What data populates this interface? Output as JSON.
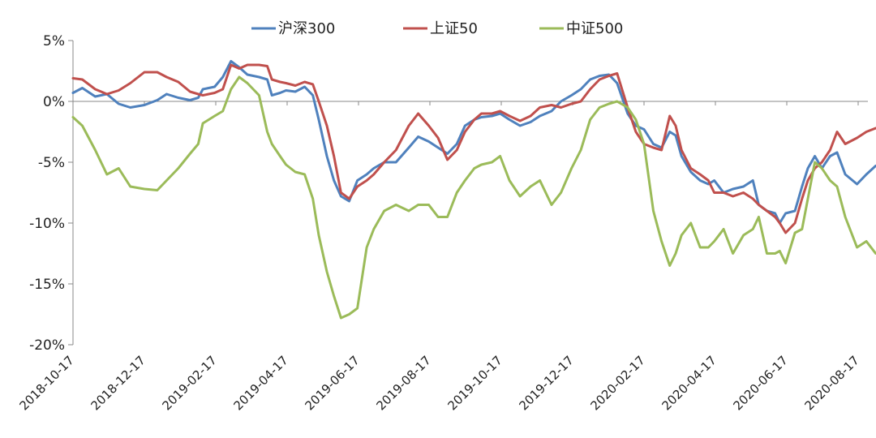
{
  "chart_data": {
    "type": "line",
    "title": "",
    "xlabel": "",
    "ylabel": "",
    "ylim": [
      -20,
      5
    ],
    "y_unit": "%",
    "grid": false,
    "legend_position": "top",
    "y_ticks": [
      "5%",
      "0%",
      "-5%",
      "-10%",
      "-15%",
      "-20%"
    ],
    "x_ticks": [
      "2018-10-17",
      "2018-12-17",
      "2019-02-17",
      "2019-04-17",
      "2019-06-17",
      "2019-08-17",
      "2019-10-17",
      "2019-12-17",
      "2020-02-17",
      "2020-04-17",
      "2020-06-17",
      "2020-08-17"
    ],
    "series": [
      {
        "name": "沪深300",
        "color": "#4f81bd",
        "points": [
          [
            "2018-10-17",
            0.7
          ],
          [
            "2018-10-25",
            1.1
          ],
          [
            "2018-11-05",
            0.4
          ],
          [
            "2018-11-15",
            0.6
          ],
          [
            "2018-11-25",
            -0.2
          ],
          [
            "2018-12-05",
            -0.5
          ],
          [
            "2018-12-17",
            -0.3
          ],
          [
            "2018-12-28",
            0.1
          ],
          [
            "2019-01-05",
            0.6
          ],
          [
            "2019-01-15",
            0.3
          ],
          [
            "2019-01-25",
            0.1
          ],
          [
            "2019-02-01",
            0.3
          ],
          [
            "2019-02-05",
            1.0
          ],
          [
            "2019-02-15",
            1.2
          ],
          [
            "2019-02-22",
            2.0
          ],
          [
            "2019-03-01",
            3.3
          ],
          [
            "2019-03-08",
            2.8
          ],
          [
            "2019-03-15",
            2.2
          ],
          [
            "2019-03-25",
            2.0
          ],
          [
            "2019-04-01",
            1.8
          ],
          [
            "2019-04-05",
            0.5
          ],
          [
            "2019-04-12",
            0.7
          ],
          [
            "2019-04-17",
            0.9
          ],
          [
            "2019-04-25",
            0.8
          ],
          [
            "2019-05-03",
            1.2
          ],
          [
            "2019-05-10",
            0.5
          ],
          [
            "2019-05-15",
            -1.5
          ],
          [
            "2019-05-22",
            -4.5
          ],
          [
            "2019-05-28",
            -6.5
          ],
          [
            "2019-06-03",
            -7.8
          ],
          [
            "2019-06-10",
            -8.2
          ],
          [
            "2019-06-17",
            -6.5
          ],
          [
            "2019-06-25",
            -6.0
          ],
          [
            "2019-07-01",
            -5.5
          ],
          [
            "2019-07-10",
            -5.0
          ],
          [
            "2019-07-20",
            -5.0
          ],
          [
            "2019-07-31",
            -3.8
          ],
          [
            "2019-08-08",
            -2.9
          ],
          [
            "2019-08-17",
            -3.3
          ],
          [
            "2019-08-25",
            -3.8
          ],
          [
            "2019-09-02",
            -4.3
          ],
          [
            "2019-09-10",
            -3.5
          ],
          [
            "2019-09-17",
            -2.0
          ],
          [
            "2019-09-25",
            -1.5
          ],
          [
            "2019-10-01",
            -1.3
          ],
          [
            "2019-10-10",
            -1.2
          ],
          [
            "2019-10-17",
            -1.0
          ],
          [
            "2019-10-25",
            -1.5
          ],
          [
            "2019-11-03",
            -2.0
          ],
          [
            "2019-11-12",
            -1.7
          ],
          [
            "2019-11-20",
            -1.2
          ],
          [
            "2019-11-30",
            -0.8
          ],
          [
            "2019-12-08",
            0.0
          ],
          [
            "2019-12-17",
            0.5
          ],
          [
            "2019-12-25",
            1.0
          ],
          [
            "2020-01-02",
            1.8
          ],
          [
            "2020-01-10",
            2.1
          ],
          [
            "2020-01-18",
            2.2
          ],
          [
            "2020-01-25",
            1.5
          ],
          [
            "2020-02-03",
            -1.0
          ],
          [
            "2020-02-10",
            -2.0
          ],
          [
            "2020-02-17",
            -2.3
          ],
          [
            "2020-02-25",
            -3.5
          ],
          [
            "2020-03-03",
            -3.8
          ],
          [
            "2020-03-10",
            -2.5
          ],
          [
            "2020-03-15",
            -2.8
          ],
          [
            "2020-03-20",
            -4.5
          ],
          [
            "2020-03-28",
            -5.8
          ],
          [
            "2020-04-05",
            -6.5
          ],
          [
            "2020-04-12",
            -6.8
          ],
          [
            "2020-04-17",
            -6.5
          ],
          [
            "2020-04-25",
            -7.5
          ],
          [
            "2020-05-03",
            -7.2
          ],
          [
            "2020-05-12",
            -7.0
          ],
          [
            "2020-05-20",
            -6.5
          ],
          [
            "2020-05-25",
            -8.5
          ],
          [
            "2020-06-01",
            -9.0
          ],
          [
            "2020-06-08",
            -9.2
          ],
          [
            "2020-06-12",
            -10.0
          ],
          [
            "2020-06-17",
            -9.2
          ],
          [
            "2020-06-25",
            -9.0
          ],
          [
            "2020-07-01",
            -7.0
          ],
          [
            "2020-07-06",
            -5.5
          ],
          [
            "2020-07-12",
            -4.5
          ],
          [
            "2020-07-18",
            -5.5
          ],
          [
            "2020-07-25",
            -4.5
          ],
          [
            "2020-07-31",
            -4.2
          ],
          [
            "2020-08-07",
            -6.0
          ],
          [
            "2020-08-17",
            -6.8
          ],
          [
            "2020-08-25",
            -6.0
          ],
          [
            "2020-09-02",
            -5.3
          ],
          [
            "2020-09-10",
            -5.2
          ]
        ]
      },
      {
        "name": "上证50",
        "color": "#c0504d",
        "points": [
          [
            "2018-10-17",
            1.9
          ],
          [
            "2018-10-25",
            1.8
          ],
          [
            "2018-11-05",
            1.0
          ],
          [
            "2018-11-15",
            0.6
          ],
          [
            "2018-11-25",
            0.9
          ],
          [
            "2018-12-05",
            1.5
          ],
          [
            "2018-12-17",
            2.4
          ],
          [
            "2018-12-28",
            2.4
          ],
          [
            "2019-01-05",
            2.0
          ],
          [
            "2019-01-15",
            1.6
          ],
          [
            "2019-01-25",
            0.8
          ],
          [
            "2019-02-01",
            0.6
          ],
          [
            "2019-02-05",
            0.5
          ],
          [
            "2019-02-15",
            0.7
          ],
          [
            "2019-02-22",
            1.0
          ],
          [
            "2019-03-01",
            3.0
          ],
          [
            "2019-03-08",
            2.7
          ],
          [
            "2019-03-15",
            3.0
          ],
          [
            "2019-03-25",
            3.0
          ],
          [
            "2019-04-01",
            2.9
          ],
          [
            "2019-04-05",
            1.8
          ],
          [
            "2019-04-12",
            1.6
          ],
          [
            "2019-04-17",
            1.5
          ],
          [
            "2019-04-25",
            1.3
          ],
          [
            "2019-05-03",
            1.6
          ],
          [
            "2019-05-10",
            1.4
          ],
          [
            "2019-05-15",
            0.0
          ],
          [
            "2019-05-22",
            -2.0
          ],
          [
            "2019-05-28",
            -4.5
          ],
          [
            "2019-06-03",
            -7.5
          ],
          [
            "2019-06-10",
            -8.0
          ],
          [
            "2019-06-17",
            -7.0
          ],
          [
            "2019-06-25",
            -6.5
          ],
          [
            "2019-07-01",
            -6.0
          ],
          [
            "2019-07-10",
            -5.0
          ],
          [
            "2019-07-20",
            -4.0
          ],
          [
            "2019-07-31",
            -2.0
          ],
          [
            "2019-08-08",
            -1.0
          ],
          [
            "2019-08-17",
            -2.0
          ],
          [
            "2019-08-25",
            -3.0
          ],
          [
            "2019-09-02",
            -4.8
          ],
          [
            "2019-09-10",
            -4.0
          ],
          [
            "2019-09-17",
            -2.5
          ],
          [
            "2019-09-25",
            -1.5
          ],
          [
            "2019-10-01",
            -1.0
          ],
          [
            "2019-10-10",
            -1.0
          ],
          [
            "2019-10-17",
            -0.8
          ],
          [
            "2019-10-25",
            -1.2
          ],
          [
            "2019-11-03",
            -1.6
          ],
          [
            "2019-11-12",
            -1.2
          ],
          [
            "2019-11-20",
            -0.5
          ],
          [
            "2019-11-30",
            -0.3
          ],
          [
            "2019-12-08",
            -0.5
          ],
          [
            "2019-12-17",
            -0.2
          ],
          [
            "2019-12-25",
            0.0
          ],
          [
            "2020-01-02",
            1.0
          ],
          [
            "2020-01-10",
            1.8
          ],
          [
            "2020-01-18",
            2.1
          ],
          [
            "2020-01-25",
            2.3
          ],
          [
            "2020-02-03",
            -0.5
          ],
          [
            "2020-02-10",
            -2.5
          ],
          [
            "2020-02-17",
            -3.5
          ],
          [
            "2020-02-25",
            -3.8
          ],
          [
            "2020-03-03",
            -4.0
          ],
          [
            "2020-03-10",
            -1.2
          ],
          [
            "2020-03-15",
            -2.0
          ],
          [
            "2020-03-20",
            -4.0
          ],
          [
            "2020-03-28",
            -5.5
          ],
          [
            "2020-04-05",
            -6.0
          ],
          [
            "2020-04-12",
            -6.5
          ],
          [
            "2020-04-17",
            -7.5
          ],
          [
            "2020-04-25",
            -7.5
          ],
          [
            "2020-05-03",
            -7.8
          ],
          [
            "2020-05-12",
            -7.5
          ],
          [
            "2020-05-20",
            -8.0
          ],
          [
            "2020-05-25",
            -8.5
          ],
          [
            "2020-06-01",
            -9.0
          ],
          [
            "2020-06-08",
            -9.5
          ],
          [
            "2020-06-12",
            -10.0
          ],
          [
            "2020-06-17",
            -10.8
          ],
          [
            "2020-06-25",
            -10.0
          ],
          [
            "2020-07-01",
            -8.0
          ],
          [
            "2020-07-06",
            -6.5
          ],
          [
            "2020-07-12",
            -5.5
          ],
          [
            "2020-07-18",
            -5.0
          ],
          [
            "2020-07-25",
            -4.0
          ],
          [
            "2020-07-31",
            -2.5
          ],
          [
            "2020-08-07",
            -3.5
          ],
          [
            "2020-08-17",
            -3.0
          ],
          [
            "2020-08-25",
            -2.5
          ],
          [
            "2020-09-02",
            -2.2
          ],
          [
            "2020-09-10",
            -2.3
          ]
        ]
      },
      {
        "name": "中证500",
        "color": "#9bbb59",
        "points": [
          [
            "2018-10-17",
            -1.3
          ],
          [
            "2018-10-25",
            -2.0
          ],
          [
            "2018-11-05",
            -4.0
          ],
          [
            "2018-11-15",
            -6.0
          ],
          [
            "2018-11-25",
            -5.5
          ],
          [
            "2018-12-05",
            -7.0
          ],
          [
            "2018-12-17",
            -7.2
          ],
          [
            "2018-12-28",
            -7.3
          ],
          [
            "2019-01-05",
            -6.5
          ],
          [
            "2019-01-15",
            -5.5
          ],
          [
            "2019-01-25",
            -4.3
          ],
          [
            "2019-02-01",
            -3.5
          ],
          [
            "2019-02-05",
            -1.8
          ],
          [
            "2019-02-15",
            -1.2
          ],
          [
            "2019-02-22",
            -0.8
          ],
          [
            "2019-03-01",
            1.0
          ],
          [
            "2019-03-08",
            2.0
          ],
          [
            "2019-03-15",
            1.5
          ],
          [
            "2019-03-25",
            0.5
          ],
          [
            "2019-04-01",
            -2.5
          ],
          [
            "2019-04-05",
            -3.5
          ],
          [
            "2019-04-12",
            -4.5
          ],
          [
            "2019-04-17",
            -5.2
          ],
          [
            "2019-04-25",
            -5.8
          ],
          [
            "2019-05-03",
            -6.0
          ],
          [
            "2019-05-10",
            -8.0
          ],
          [
            "2019-05-15",
            -11.0
          ],
          [
            "2019-05-22",
            -14.0
          ],
          [
            "2019-05-28",
            -16.0
          ],
          [
            "2019-06-03",
            -17.8
          ],
          [
            "2019-06-10",
            -17.5
          ],
          [
            "2019-06-17",
            -17.0
          ],
          [
            "2019-06-25",
            -12.0
          ],
          [
            "2019-07-01",
            -10.5
          ],
          [
            "2019-07-10",
            -9.0
          ],
          [
            "2019-07-20",
            -8.5
          ],
          [
            "2019-07-31",
            -9.0
          ],
          [
            "2019-08-08",
            -8.5
          ],
          [
            "2019-08-17",
            -8.5
          ],
          [
            "2019-08-25",
            -9.5
          ],
          [
            "2019-09-02",
            -9.5
          ],
          [
            "2019-09-10",
            -7.5
          ],
          [
            "2019-09-17",
            -6.5
          ],
          [
            "2019-09-25",
            -5.5
          ],
          [
            "2019-10-01",
            -5.2
          ],
          [
            "2019-10-10",
            -5.0
          ],
          [
            "2019-10-17",
            -4.5
          ],
          [
            "2019-10-25",
            -6.5
          ],
          [
            "2019-11-03",
            -7.8
          ],
          [
            "2019-11-12",
            -7.0
          ],
          [
            "2019-11-20",
            -6.5
          ],
          [
            "2019-11-30",
            -8.5
          ],
          [
            "2019-12-08",
            -7.5
          ],
          [
            "2019-12-17",
            -5.5
          ],
          [
            "2019-12-25",
            -4.0
          ],
          [
            "2020-01-02",
            -1.5
          ],
          [
            "2020-01-10",
            -0.5
          ],
          [
            "2020-01-18",
            -0.2
          ],
          [
            "2020-01-25",
            0.0
          ],
          [
            "2020-02-03",
            -0.5
          ],
          [
            "2020-02-10",
            -1.5
          ],
          [
            "2020-02-17",
            -3.5
          ],
          [
            "2020-02-25",
            -9.0
          ],
          [
            "2020-03-03",
            -11.5
          ],
          [
            "2020-03-10",
            -13.5
          ],
          [
            "2020-03-15",
            -12.5
          ],
          [
            "2020-03-20",
            -11.0
          ],
          [
            "2020-03-28",
            -10.0
          ],
          [
            "2020-04-05",
            -12.0
          ],
          [
            "2020-04-12",
            -12.0
          ],
          [
            "2020-04-17",
            -11.5
          ],
          [
            "2020-04-25",
            -10.5
          ],
          [
            "2020-05-03",
            -12.5
          ],
          [
            "2020-05-12",
            -11.0
          ],
          [
            "2020-05-20",
            -10.5
          ],
          [
            "2020-05-25",
            -9.5
          ],
          [
            "2020-06-01",
            -12.5
          ],
          [
            "2020-06-08",
            -12.5
          ],
          [
            "2020-06-12",
            -12.3
          ],
          [
            "2020-06-17",
            -13.3
          ],
          [
            "2020-06-25",
            -10.8
          ],
          [
            "2020-07-01",
            -10.5
          ],
          [
            "2020-07-06",
            -8.0
          ],
          [
            "2020-07-12",
            -5.0
          ],
          [
            "2020-07-18",
            -5.5
          ],
          [
            "2020-07-25",
            -6.5
          ],
          [
            "2020-07-31",
            -7.0
          ],
          [
            "2020-08-07",
            -9.5
          ],
          [
            "2020-08-17",
            -12.0
          ],
          [
            "2020-08-25",
            -11.5
          ],
          [
            "2020-09-02",
            -12.5
          ],
          [
            "2020-09-10",
            -12.3
          ]
        ]
      }
    ]
  }
}
